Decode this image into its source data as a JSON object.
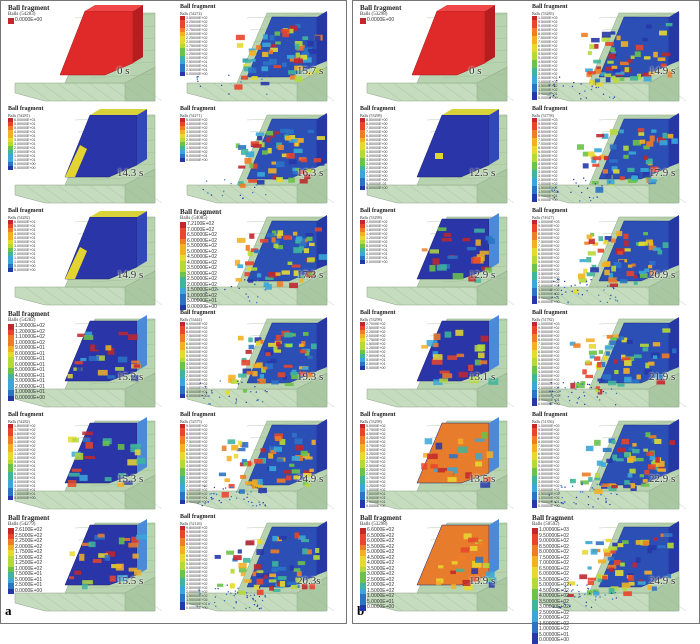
{
  "legend_title": "Ball fragment",
  "colors": [
    "#c1272d",
    "#e8452c",
    "#f07c26",
    "#f3b025",
    "#e6d930",
    "#b6d93a",
    "#6cc24a",
    "#3fb59b",
    "#3aa7d8",
    "#2c73c6",
    "#2637a8"
  ],
  "panels": [
    {
      "label": "a",
      "cells": [
        {
          "time": "0 s",
          "title": "Ball fragment",
          "subtitle": "Balls (54283)",
          "values": [
            "0.0000E+00"
          ],
          "big": true,
          "state": 0
        },
        {
          "time": "15.7 s",
          "title": "Ball fragment",
          "subtitle": "Balls (54274)",
          "values": [
            "3.50000E+02",
            "3.25000E+02",
            "3.00000E+02",
            "2.75000E+02",
            "2.50000E+02",
            "2.25000E+02",
            "2.00000E+02",
            "1.75000E+02",
            "1.50000E+02",
            "1.25000E+02",
            "1.00000E+02",
            "7.50000E+01",
            "5.00000E+01",
            "2.50000E+01",
            "0.00000E+00"
          ],
          "big": false,
          "state": 3
        },
        {
          "time": "14.3 s",
          "title": "Ball fragment",
          "subtitle": "Balls (54281)",
          "values": [
            "6.00000E+01",
            "5.50000E+01",
            "5.00000E+01",
            "4.50000E+01",
            "4.00000E+01",
            "3.50000E+01",
            "3.00000E+01",
            "2.50000E+01",
            "2.00000E+01",
            "1.50000E+01",
            "1.00000E+01",
            "5.00000E+00",
            "0.00000E+00"
          ],
          "big": false,
          "state": 1
        },
        {
          "time": "16.3 s",
          "title": "Ball fragment",
          "subtitle": "Balls (54271)",
          "values": [
            "5.00000E+02",
            "4.50000E+02",
            "4.00000E+02",
            "3.50000E+02",
            "3.00000E+02",
            "2.50000E+02",
            "2.00000E+02",
            "1.50000E+02",
            "1.00000E+02",
            "5.00000E+01",
            "0.00000E+00"
          ],
          "big": false,
          "state": 3
        },
        {
          "time": "14.9 s",
          "title": "Ball fragment",
          "subtitle": "Balls (54282)",
          "values": [
            "6.00000E+01",
            "5.50000E+01",
            "5.00000E+01",
            "4.50000E+01",
            "4.00000E+01",
            "3.50000E+01",
            "3.00000E+01",
            "2.50000E+01",
            "2.00000E+01",
            "1.50000E+01",
            "1.00000E+01",
            "5.00000E+00",
            "0.00000E+00"
          ],
          "big": false,
          "state": 1
        },
        {
          "time": "17.3 s",
          "title": "Ball fragment",
          "subtitle": "Balls (54085)",
          "values": [
            "7.2100E+02",
            "7.0000E+02",
            "6.50000E+02",
            "6.00000E+02",
            "5.50000E+02",
            "5.00000E+02",
            "4.50000E+02",
            "4.00000E+02",
            "3.50000E+02",
            "3.00000E+02",
            "2.50000E+02",
            "2.00000E+02",
            "1.50000E+02",
            "1.00000E+02",
            "5.00000E+01",
            "0.00000E+00"
          ],
          "big": true,
          "state": 3
        },
        {
          "time": "15.2 s",
          "title": "Ball fragment",
          "subtitle": "Balls (54282)",
          "values": [
            "1.30000E+02",
            "1.20000E+02",
            "1.10000E+02",
            "1.00000E+02",
            "9.00000E+01",
            "8.00000E+01",
            "7.00000E+01",
            "6.00000E+01",
            "5.00000E+01",
            "4.00000E+01",
            "3.00000E+01",
            "2.00000E+01",
            "1.00000E+01",
            "0.00000E+00"
          ],
          "big": true,
          "state": 2
        },
        {
          "time": "19.3 s",
          "title": "Ball fragment",
          "subtitle": "Balls (53444)",
          "values": [
            "9.00000E+02",
            "8.50000E+02",
            "8.00000E+02",
            "7.50000E+02",
            "7.00000E+02",
            "6.50000E+02",
            "6.00000E+02",
            "5.50000E+02",
            "5.00000E+02",
            "4.50000E+02",
            "4.00000E+02",
            "3.50000E+02",
            "3.00000E+02",
            "2.50000E+02",
            "2.00000E+02",
            "1.50000E+02",
            "1.00000E+02",
            "5.00000E+01",
            "0.00000E+00"
          ],
          "big": false,
          "state": 4
        },
        {
          "time": "15.3 s",
          "title": "Ball fragment",
          "subtitle": "Balls (54282)",
          "values": [
            "1.80000E+02",
            "1.70000E+02",
            "1.60000E+02",
            "1.50000E+02",
            "1.40000E+02",
            "1.30000E+02",
            "1.20000E+02",
            "1.10000E+02",
            "1.00000E+02",
            "9.00000E+01",
            "8.00000E+01",
            "7.00000E+01",
            "6.00000E+01",
            "5.00000E+01",
            "4.00000E+01",
            "3.00000E+01",
            "2.00000E+01",
            "1.00000E+01",
            "0.00000E+00"
          ],
          "big": false,
          "state": 2
        },
        {
          "time": "24.9 s",
          "title": "Ball fragment",
          "subtitle": "Balls (52575)",
          "values": [
            "9.50000E+02",
            "9.00000E+02",
            "8.50000E+02",
            "8.00000E+02",
            "7.50000E+02",
            "7.00000E+02",
            "6.50000E+02",
            "6.00000E+02",
            "5.50000E+02",
            "5.00000E+02",
            "4.50000E+02",
            "4.00000E+02",
            "3.50000E+02",
            "3.00000E+02",
            "2.50000E+02",
            "2.00000E+02",
            "1.50000E+02",
            "1.00000E+02",
            "5.00000E+01",
            "0.00000E+00"
          ],
          "big": false,
          "state": 5
        },
        {
          "time": "15.5 s",
          "title": "Ball fragment",
          "subtitle": "Balls (54279)",
          "values": [
            "2.6100E+02",
            "2.5000E+02",
            "2.2500E+02",
            "2.0000E+02",
            "1.7500E+02",
            "1.5000E+02",
            "1.2500E+02",
            "1.0000E+02",
            "7.5000E+01",
            "5.0000E+01",
            "2.5000E+01",
            "0.0000E+00"
          ],
          "big": true,
          "state": 2
        },
        {
          "time": "20.3s",
          "title": "Ball fragment",
          "subtitle": "Balls (52126)",
          "values": [
            "9.80000E+02",
            "9.50000E+02",
            "9.00000E+02",
            "8.50000E+02",
            "8.00000E+02",
            "7.50000E+02",
            "7.00000E+02",
            "6.50000E+02",
            "6.00000E+02",
            "5.50000E+02",
            "5.00000E+02",
            "4.50000E+02",
            "4.00000E+02",
            "3.50000E+02",
            "3.00000E+02",
            "2.50000E+02",
            "2.00000E+02",
            "1.50000E+02",
            "1.00000E+02",
            "5.00000E+01",
            "0.00000E+00"
          ],
          "big": false,
          "state": 5
        }
      ]
    },
    {
      "label": "b",
      "cells": [
        {
          "time": "0 s",
          "title": "Ball fragment",
          "subtitle": "Balls (53298)",
          "values": [
            "0.0000E+00"
          ],
          "big": true,
          "state": 0
        },
        {
          "time": "14.9 s",
          "title": "Ball fragment",
          "subtitle": "Balls (53285)",
          "values": [
            "1.0000E+03",
            "9.5000E+02",
            "9.0000E+02",
            "8.5000E+02",
            "8.0000E+02",
            "7.5000E+02",
            "7.0000E+02",
            "6.5000E+02",
            "6.0000E+02",
            "5.5000E+02",
            "5.0000E+02",
            "4.5000E+02",
            "4.0000E+02",
            "3.5000E+02",
            "3.0000E+02",
            "2.5000E+02",
            "2.0000E+02",
            "1.5000E+02",
            "1.0000E+02",
            "5.0000E+01",
            "0.0000E+00"
          ],
          "big": false,
          "state": 6
        },
        {
          "time": "12.5 s",
          "title": "Ball fragment",
          "subtitle": "Balls (53298)",
          "values": [
            "8.50000E+00",
            "8.00000E+00",
            "7.50000E+00",
            "7.00000E+00",
            "6.50000E+00",
            "6.00000E+00",
            "5.50000E+00",
            "5.00000E+00",
            "4.50000E+00",
            "4.00000E+00",
            "3.50000E+00",
            "3.00000E+00",
            "2.50000E+00",
            "2.00000E+00",
            "1.50000E+00",
            "1.00000E+00",
            "5.00000E-01",
            "0.00000E+00"
          ],
          "big": false,
          "state": 7
        },
        {
          "time": "17.9 s",
          "title": "Ball fragment",
          "subtitle": "Balls (52758)",
          "values": [
            "1.0000E+03",
            "9.5000E+02",
            "9.0000E+02",
            "8.5000E+02",
            "8.0000E+02",
            "7.5000E+02",
            "7.0000E+02",
            "6.5000E+02",
            "6.0000E+02",
            "5.5000E+02",
            "5.0000E+02",
            "4.5000E+02",
            "4.0000E+02",
            "3.5000E+02",
            "3.0000E+02",
            "2.5000E+02",
            "2.0000E+02",
            "1.5000E+02",
            "1.0000E+02",
            "5.0000E+01",
            "0.0000E+00"
          ],
          "big": false,
          "state": 6
        },
        {
          "time": "12.9 s",
          "title": "Ball fragment",
          "subtitle": "Balls (53298)",
          "values": [
            "2.00000E+02",
            "1.80000E+02",
            "1.60000E+02",
            "1.40000E+02",
            "1.20000E+02",
            "1.00000E+02",
            "8.00000E+01",
            "6.00000E+01",
            "4.00000E+01",
            "2.00000E+01",
            "0.00000E+00"
          ],
          "big": false,
          "state": 8
        },
        {
          "time": "20.9 s",
          "title": "Ball fragment",
          "subtitle": "Balls (51627)",
          "values": [
            "1.00000E+03",
            "9.50000E+02",
            "9.00000E+02",
            "8.50000E+02",
            "8.00000E+02",
            "7.50000E+02",
            "7.00000E+02",
            "6.50000E+02",
            "6.00000E+02",
            "5.50000E+02",
            "5.00000E+02",
            "4.50000E+02",
            "4.00000E+02",
            "3.50000E+02",
            "3.00000E+02",
            "2.50000E+02",
            "2.00000E+02",
            "1.50000E+02",
            "1.00000E+02",
            "5.00000E+01",
            "0.00000E+00"
          ],
          "big": false,
          "state": 9
        },
        {
          "time": "13.1 s",
          "title": "Ball fragment",
          "subtitle": "Balls (53298)",
          "values": [
            "2.7000E+02",
            "2.5000E+02",
            "2.2500E+02",
            "2.0000E+02",
            "1.7500E+02",
            "1.5000E+02",
            "1.2500E+02",
            "1.0000E+02",
            "7.5000E+01",
            "5.0000E+01",
            "2.5000E+01",
            "0.0000E+00"
          ],
          "big": false,
          "state": 8
        },
        {
          "time": "21.9 s",
          "title": "Ball fragment",
          "subtitle": "Balls (51782)",
          "values": [
            "1.00000E+03",
            "9.50000E+02",
            "9.00000E+02",
            "8.50000E+02",
            "8.00000E+02",
            "7.50000E+02",
            "7.00000E+02",
            "6.50000E+02",
            "6.00000E+02",
            "5.50000E+02",
            "5.00000E+02",
            "4.50000E+02",
            "4.00000E+02",
            "3.50000E+02",
            "3.00000E+02",
            "2.50000E+02",
            "2.00000E+02",
            "1.50000E+02",
            "1.00000E+02",
            "5.00000E+01",
            "0.00000E+00"
          ],
          "big": false,
          "state": 9
        },
        {
          "time": "13.5 s",
          "title": "Ball fragment",
          "subtitle": "Balls (53298)",
          "values": [
            "5.0000E+02",
            "4.7500E+02",
            "4.5000E+02",
            "4.2500E+02",
            "4.0000E+02",
            "3.7500E+02",
            "3.5000E+02",
            "3.2500E+02",
            "3.0000E+02",
            "2.7500E+02",
            "2.5000E+02",
            "2.2500E+02",
            "2.0000E+02",
            "1.7500E+02",
            "1.5000E+02",
            "1.2500E+02",
            "1.0000E+02",
            "7.5000E+01",
            "5.0000E+01",
            "2.5000E+01",
            "0.0000E+00"
          ],
          "big": false,
          "state": 10
        },
        {
          "time": "22.9 s",
          "title": "Ball fragment",
          "subtitle": "Balls (51356)",
          "values": [
            "1.00000E+03",
            "9.50000E+02",
            "9.00000E+02",
            "8.50000E+02",
            "8.00000E+02",
            "7.50000E+02",
            "7.00000E+02",
            "6.50000E+02",
            "6.00000E+02",
            "5.50000E+02",
            "5.00000E+02",
            "4.50000E+02",
            "4.00000E+02",
            "3.50000E+02",
            "3.00000E+02",
            "2.50000E+02",
            "2.00000E+02",
            "1.50000E+02",
            "1.00000E+02",
            "5.00000E+01",
            "0.00000E+00"
          ],
          "big": false,
          "state": 9
        },
        {
          "time": "13.9 s",
          "title": "Ball fragment",
          "subtitle": "Balls (53298)",
          "values": [
            "6.6000E+02",
            "6.5000E+02",
            "6.0000E+02",
            "5.5000E+02",
            "5.0000E+02",
            "4.5000E+02",
            "4.0000E+02",
            "3.5000E+02",
            "3.0000E+02",
            "2.5000E+02",
            "2.0000E+02",
            "1.5000E+02",
            "1.0000E+02",
            "5.0000E+01",
            "0.0000E+00"
          ],
          "big": true,
          "state": 10
        },
        {
          "time": "24.9 s",
          "title": "Ball fragment",
          "subtitle": "Balls (50592)",
          "values": [
            "1.00000E+03",
            "9.50000E+02",
            "9.00000E+02",
            "8.50000E+02",
            "8.00000E+02",
            "7.50000E+02",
            "7.00000E+02",
            "6.50000E+02",
            "6.00000E+02",
            "5.50000E+02",
            "5.00000E+02",
            "4.50000E+02",
            "4.00000E+02",
            "3.50000E+02",
            "3.00000E+02",
            "2.50000E+02",
            "2.00000E+02",
            "1.50000E+02",
            "1.00000E+02",
            "5.00000E+01",
            "0.00000E+00"
          ],
          "big": true,
          "state": 9
        }
      ]
    }
  ]
}
